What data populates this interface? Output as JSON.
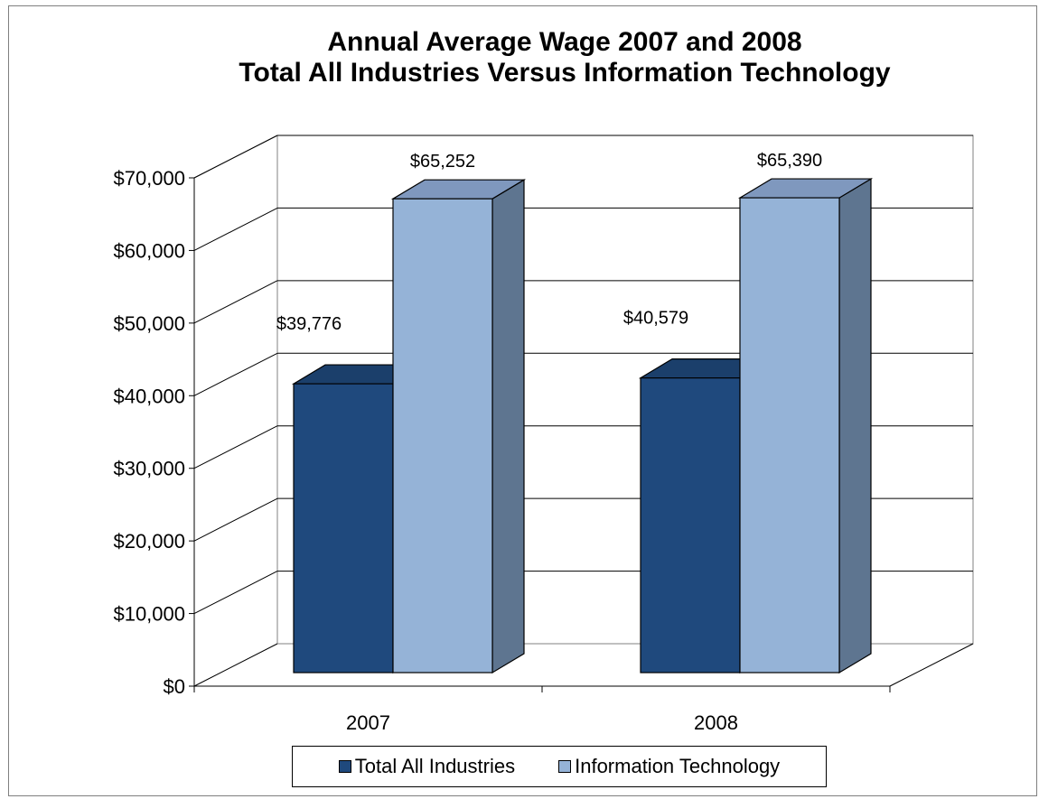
{
  "chart_data": {
    "type": "bar",
    "title": "Annual Average Wage 2007 and 2008",
    "subtitle": "Total All Industries Versus Information Technology",
    "categories": [
      "2007",
      "2008"
    ],
    "series": [
      {
        "name": "Total All Industries",
        "values": [
          39776,
          40579
        ],
        "labels": [
          "$39,776",
          "$40,579"
        ],
        "color": "#1f497d"
      },
      {
        "name": "Information Technology",
        "values": [
          65252,
          65390
        ],
        "labels": [
          "$65,252",
          "$65,390"
        ],
        "color": "#95b3d7"
      }
    ],
    "yticks": [
      "$0",
      "$10,000",
      "$20,000",
      "$30,000",
      "$40,000",
      "$50,000",
      "$60,000",
      "$70,000"
    ],
    "ylim": [
      0,
      70000
    ],
    "grid": true,
    "legend": "bottom",
    "style": "3d-clustered-column"
  }
}
